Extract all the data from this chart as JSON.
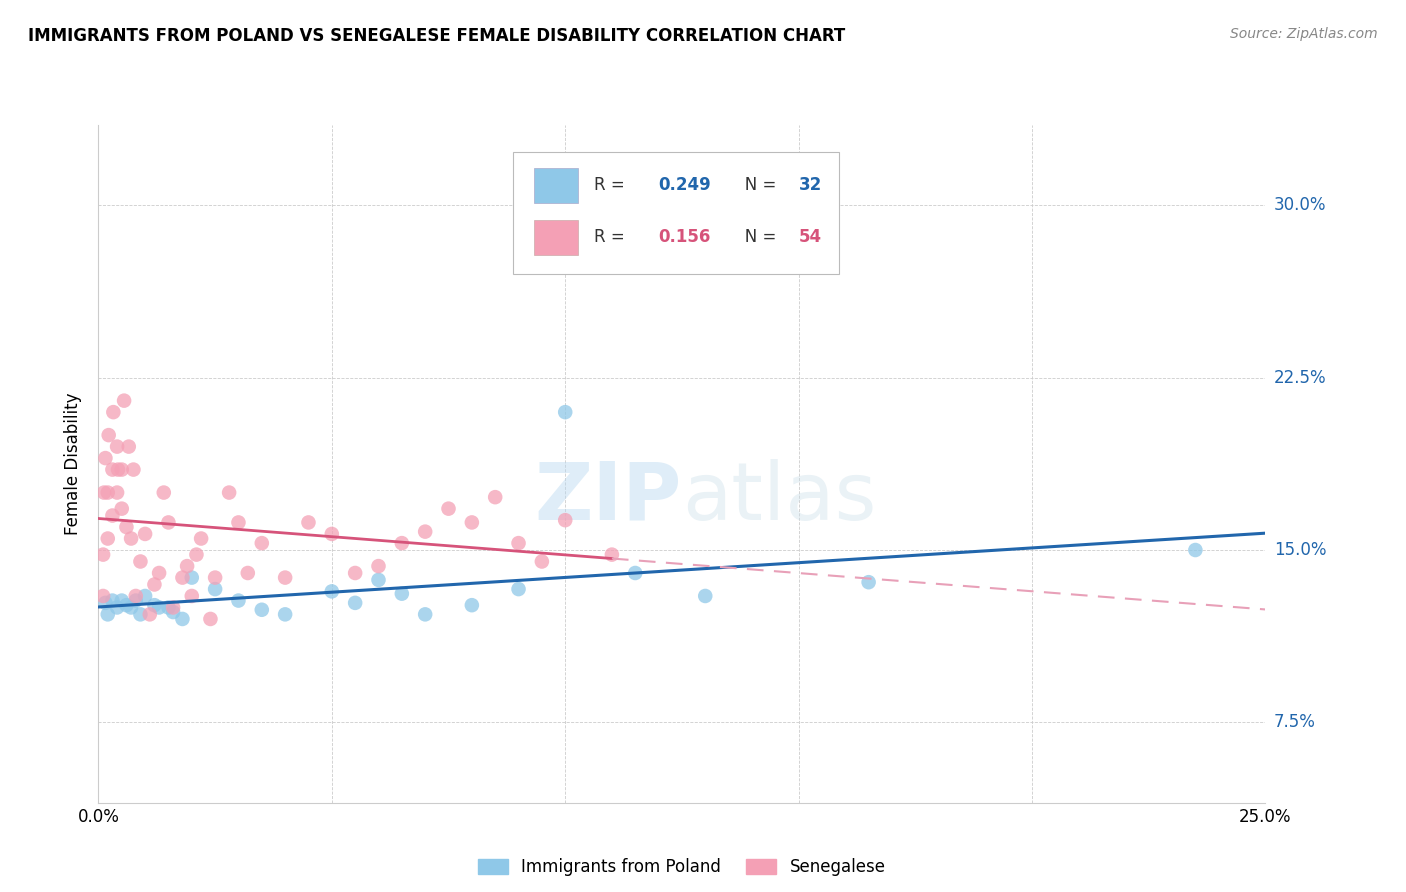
{
  "title": "IMMIGRANTS FROM POLAND VS SENEGALESE FEMALE DISABILITY CORRELATION CHART",
  "source": "Source: ZipAtlas.com",
  "ylabel": "Female Disability",
  "xlim": [
    0.0,
    0.25
  ],
  "ylim": [
    0.04,
    0.335
  ],
  "ytick_vals": [
    0.075,
    0.15,
    0.225,
    0.3
  ],
  "ytick_labels": [
    "7.5%",
    "15.0%",
    "22.5%",
    "30.0%"
  ],
  "xtick_vals": [
    0.0,
    0.05,
    0.1,
    0.15,
    0.2,
    0.25
  ],
  "xtick_labels": [
    "0.0%",
    "",
    "",
    "",
    "",
    "25.0%"
  ],
  "blue_color": "#8fc8e8",
  "pink_color": "#f4a0b5",
  "blue_line_color": "#2166ac",
  "pink_line_color": "#d6537a",
  "pink_dash_color": "#e8a0b8",
  "watermark_zip": "ZIP",
  "watermark_atlas": "atlas",
  "poland_x": [
    0.0015,
    0.002,
    0.003,
    0.004,
    0.005,
    0.006,
    0.007,
    0.008,
    0.009,
    0.01,
    0.012,
    0.013,
    0.015,
    0.016,
    0.018,
    0.02,
    0.025,
    0.03,
    0.035,
    0.04,
    0.05,
    0.055,
    0.06,
    0.065,
    0.07,
    0.08,
    0.09,
    0.1,
    0.115,
    0.13,
    0.165,
    0.235
  ],
  "poland_y": [
    0.127,
    0.122,
    0.128,
    0.125,
    0.128,
    0.126,
    0.125,
    0.128,
    0.122,
    0.13,
    0.126,
    0.125,
    0.125,
    0.123,
    0.12,
    0.138,
    0.133,
    0.128,
    0.124,
    0.122,
    0.132,
    0.127,
    0.137,
    0.131,
    0.122,
    0.126,
    0.133,
    0.21,
    0.14,
    0.13,
    0.136,
    0.15
  ],
  "senegal_x": [
    0.001,
    0.001,
    0.0012,
    0.0015,
    0.002,
    0.002,
    0.0022,
    0.003,
    0.003,
    0.0032,
    0.004,
    0.004,
    0.0042,
    0.005,
    0.005,
    0.0055,
    0.006,
    0.0065,
    0.007,
    0.0075,
    0.008,
    0.009,
    0.01,
    0.011,
    0.012,
    0.013,
    0.014,
    0.015,
    0.016,
    0.018,
    0.019,
    0.02,
    0.021,
    0.022,
    0.024,
    0.025,
    0.028,
    0.03,
    0.032,
    0.035,
    0.04,
    0.045,
    0.05,
    0.055,
    0.06,
    0.065,
    0.07,
    0.075,
    0.08,
    0.085,
    0.09,
    0.095,
    0.1,
    0.11
  ],
  "senegal_y": [
    0.13,
    0.148,
    0.175,
    0.19,
    0.155,
    0.175,
    0.2,
    0.165,
    0.185,
    0.21,
    0.175,
    0.195,
    0.185,
    0.168,
    0.185,
    0.215,
    0.16,
    0.195,
    0.155,
    0.185,
    0.13,
    0.145,
    0.157,
    0.122,
    0.135,
    0.14,
    0.175,
    0.162,
    0.125,
    0.138,
    0.143,
    0.13,
    0.148,
    0.155,
    0.12,
    0.138,
    0.175,
    0.162,
    0.14,
    0.153,
    0.138,
    0.162,
    0.157,
    0.14,
    0.143,
    0.153,
    0.158,
    0.168,
    0.162,
    0.173,
    0.153,
    0.145,
    0.163,
    0.148
  ]
}
